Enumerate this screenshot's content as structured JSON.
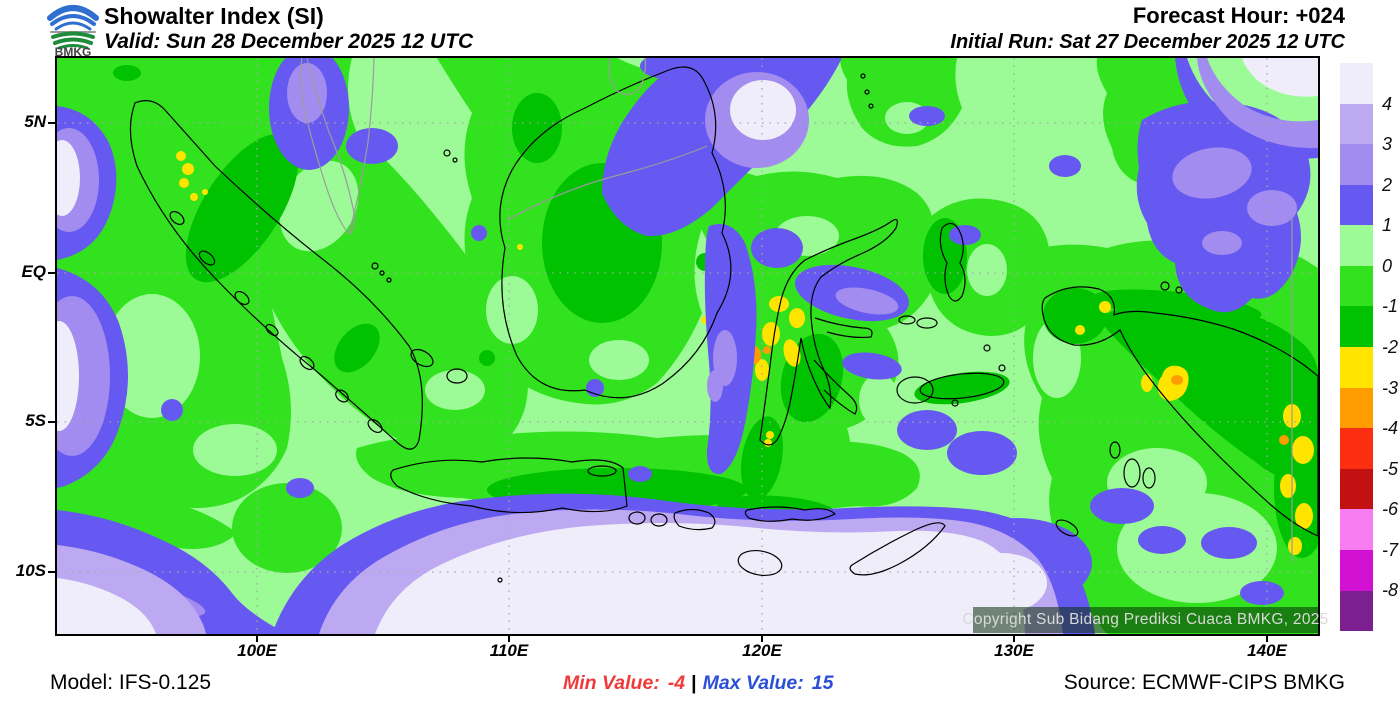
{
  "header": {
    "logo_text": "BMKG",
    "title": "Showalter Index (SI)",
    "valid": "Valid: Sun 28 December 2025 12 UTC",
    "forecast_hour": "Forecast Hour: +024",
    "initial_run": "Initial Run: Sat 27 December 2025 12 UTC"
  },
  "map": {
    "copyright": "Copyright Sub Bidang Prediksi Cuaca BMKG, 2025",
    "x_ticks": [
      "100E",
      "110E",
      "120E",
      "130E",
      "140E"
    ],
    "y_ticks": [
      "5N",
      "EQ",
      "5S",
      "10S"
    ]
  },
  "legend": {
    "labels": [
      "4",
      "3",
      "2",
      "1",
      "0",
      "-1",
      "-2",
      "-3",
      "-4",
      "-5",
      "-6",
      "-7",
      "-8"
    ],
    "colors": [
      "#EFEDFA",
      "#BCA9F2",
      "#A28CEF",
      "#6659F1",
      "#9DFB97",
      "#32E21F",
      "#01C201",
      "#FFE400",
      "#FF9C00",
      "#FB2E11",
      "#C31010",
      "#F97DF2",
      "#D110D1",
      "#7C1F8F"
    ]
  },
  "footer": {
    "model": "Model: IFS-0.125",
    "min_label": "Min Value:",
    "min_value": "-4",
    "separator": "|",
    "max_label": "Max Value:",
    "max_value": "15",
    "source": "Source: ECMWF-CIPS BMKG"
  }
}
